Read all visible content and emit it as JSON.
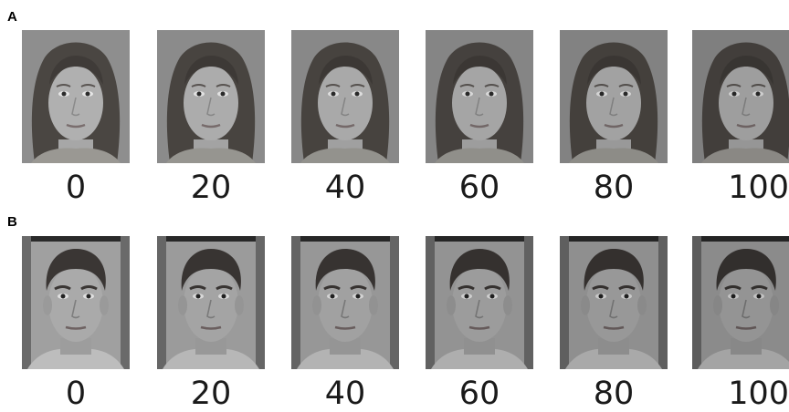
{
  "panels": [
    {
      "label": "A",
      "levels": [
        "0",
        "20",
        "40",
        "60",
        "80",
        "100"
      ],
      "subject": "female-face"
    },
    {
      "label": "B",
      "levels": [
        "0",
        "20",
        "40",
        "60",
        "80",
        "100"
      ],
      "subject": "male-face"
    }
  ]
}
